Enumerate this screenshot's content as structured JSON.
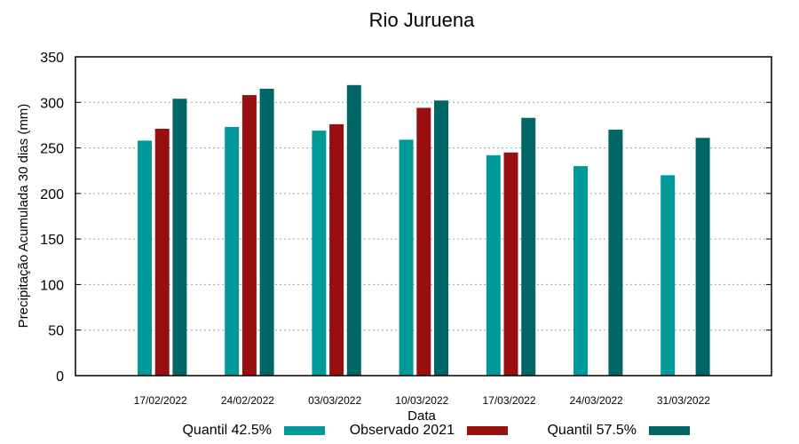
{
  "chart_data": {
    "type": "bar",
    "title": "Rio Juruena",
    "xlabel": "Data",
    "ylabel": "Precipitação Acumulada 30 dias (mm)",
    "ylim": [
      0,
      350
    ],
    "yticks": [
      0,
      50,
      100,
      150,
      200,
      250,
      300,
      350
    ],
    "grid": "horizontal dotted",
    "legend_position": "bottom",
    "categories": [
      "17/02/2022",
      "24/02/2022",
      "03/03/2022",
      "10/03/2022",
      "17/03/2022",
      "24/03/2022",
      "31/03/2022"
    ],
    "series": [
      {
        "name": "Quantil 42.5%",
        "color": "#009999",
        "values": [
          258,
          273,
          269,
          259,
          242,
          230,
          220
        ]
      },
      {
        "name": "Observado 2021",
        "color": "#990f0f",
        "values": [
          271,
          308,
          276,
          294,
          245,
          null,
          null
        ]
      },
      {
        "name": "Quantil 57.5%",
        "color": "#006666",
        "values": [
          304,
          315,
          319,
          302,
          283,
          270,
          261
        ]
      }
    ]
  }
}
